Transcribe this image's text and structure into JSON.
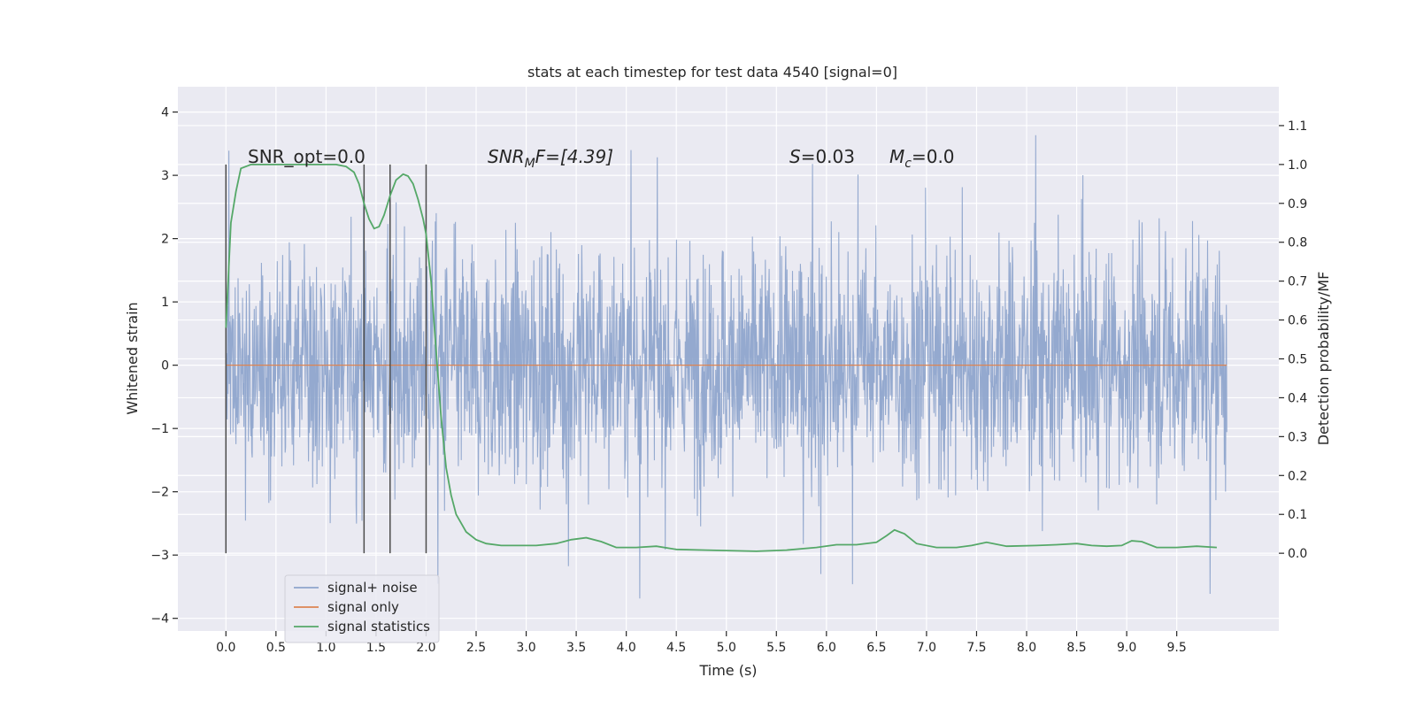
{
  "chart_data": {
    "type": "line",
    "title": "stats at each timestep for test data 4540 [signal=0]",
    "xlabel": "Time (s)",
    "ylabel_left": "Whitened strain",
    "ylabel_right": "Detection probability/MF",
    "xlim": [
      -0.48,
      10.52
    ],
    "ylim_left": [
      -4.2,
      4.4
    ],
    "ylim_right": [
      -0.2,
      1.2
    ],
    "x_ticks": [
      "0.0",
      "0.5",
      "1.0",
      "1.5",
      "2.0",
      "2.5",
      "3.0",
      "3.5",
      "4.0",
      "4.5",
      "5.0",
      "5.5",
      "6.0",
      "6.5",
      "7.0",
      "7.5",
      "8.0",
      "8.5",
      "9.0",
      "9.5"
    ],
    "y_ticks_left": [
      "4",
      "3",
      "2",
      "1",
      "0",
      "−1",
      "−2",
      "−3",
      "−4"
    ],
    "y_ticks_right": [
      "1.1",
      "1.0",
      "0.9",
      "0.8",
      "0.7",
      "0.6",
      "0.5",
      "0.4",
      "0.3",
      "0.2",
      "0.1",
      "0.0"
    ],
    "grid": true,
    "legend_position": "lower-left",
    "colors": {
      "background": "#eaeaf2",
      "signal_noise": "#8fa5cc",
      "signal_only": "#dd8452",
      "signal_statistics": "#55a868",
      "vertical_markers": "#4c4c4c"
    },
    "annotations": {
      "snr_opt": "SNR_opt=0.0",
      "snr_mf_prefix": "SNR",
      "snr_mf_sub": "M",
      "snr_mf_suffix": "F=[4.39]",
      "s_label": "S",
      "s_value": "=0.03",
      "mc_label": "M",
      "mc_sub": "c",
      "mc_value": "=0.0"
    },
    "vertical_lines_x": [
      0.0,
      1.38,
      1.64,
      2.0
    ],
    "series": [
      {
        "name": "signal+ noise",
        "axis": "left",
        "description_values": {
          "x_range": [
            0.0,
            10.0
          ],
          "envelope_min": -3.7,
          "envelope_max": 4.05,
          "typical_amplitude": 1.2
        }
      },
      {
        "name": "signal only",
        "axis": "left",
        "x": [
          0.0,
          10.0
        ],
        "y": [
          0.0,
          0.0
        ]
      },
      {
        "name": "signal statistics",
        "axis": "right",
        "x": [
          0.0,
          0.05,
          0.1,
          0.15,
          0.25,
          0.4,
          0.6,
          0.8,
          1.0,
          1.1,
          1.2,
          1.28,
          1.33,
          1.38,
          1.43,
          1.48,
          1.53,
          1.58,
          1.64,
          1.7,
          1.77,
          1.82,
          1.87,
          1.92,
          1.97,
          2.0,
          2.05,
          2.1,
          2.15,
          2.2,
          2.25,
          2.3,
          2.4,
          2.5,
          2.6,
          2.75,
          2.9,
          3.1,
          3.3,
          3.45,
          3.6,
          3.75,
          3.9,
          4.1,
          4.3,
          4.5,
          4.8,
          5.0,
          5.3,
          5.6,
          5.9,
          6.1,
          6.3,
          6.5,
          6.6,
          6.68,
          6.78,
          6.9,
          7.1,
          7.3,
          7.45,
          7.6,
          7.8,
          8.1,
          8.3,
          8.5,
          8.65,
          8.8,
          8.95,
          9.05,
          9.15,
          9.3,
          9.5,
          9.7,
          9.9
        ],
        "y": [
          0.58,
          0.85,
          0.93,
          0.99,
          1.0,
          1.0,
          1.0,
          1.0,
          1.0,
          1.0,
          0.995,
          0.98,
          0.95,
          0.9,
          0.86,
          0.835,
          0.84,
          0.87,
          0.92,
          0.96,
          0.975,
          0.97,
          0.95,
          0.91,
          0.86,
          0.82,
          0.7,
          0.52,
          0.35,
          0.22,
          0.15,
          0.1,
          0.055,
          0.035,
          0.025,
          0.02,
          0.02,
          0.02,
          0.025,
          0.035,
          0.04,
          0.03,
          0.015,
          0.015,
          0.018,
          0.01,
          0.008,
          0.007,
          0.005,
          0.008,
          0.015,
          0.022,
          0.022,
          0.028,
          0.045,
          0.06,
          0.05,
          0.025,
          0.015,
          0.015,
          0.02,
          0.028,
          0.018,
          0.02,
          0.022,
          0.025,
          0.02,
          0.018,
          0.02,
          0.032,
          0.03,
          0.015,
          0.015,
          0.018,
          0.015
        ]
      }
    ]
  }
}
